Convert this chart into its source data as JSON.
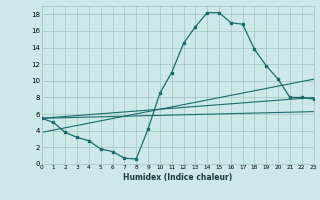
{
  "xlabel": "Humidex (Indice chaleur)",
  "bg_color": "#cce8e8",
  "grid_color": "#aacaca",
  "line_color": "#1a6b6b",
  "xlim": [
    0,
    23
  ],
  "ylim": [
    0,
    19
  ],
  "xticks": [
    0,
    1,
    2,
    3,
    4,
    5,
    6,
    7,
    8,
    9,
    10,
    11,
    12,
    13,
    14,
    15,
    16,
    17,
    18,
    19,
    20,
    21,
    22,
    23
  ],
  "yticks": [
    0,
    2,
    4,
    6,
    8,
    10,
    12,
    14,
    16,
    18
  ],
  "line1_x": [
    0,
    1,
    2,
    3,
    4,
    5,
    6,
    7,
    8,
    9,
    10,
    11,
    12,
    13,
    14,
    15,
    16,
    17,
    18,
    19,
    20,
    21,
    22,
    23
  ],
  "line1_y": [
    5.5,
    5.0,
    3.8,
    3.2,
    2.8,
    1.8,
    1.5,
    0.7,
    0.6,
    4.2,
    8.5,
    11.0,
    14.5,
    16.5,
    18.2,
    18.2,
    17.0,
    16.8,
    13.8,
    11.8,
    10.2,
    8.0,
    8.0,
    7.8
  ],
  "line2_x": [
    0,
    23
  ],
  "line2_y": [
    5.5,
    6.3
  ],
  "line3_x": [
    0,
    23
  ],
  "line3_y": [
    5.5,
    8.0
  ],
  "line4_x": [
    0,
    23
  ],
  "line4_y": [
    3.8,
    10.2
  ]
}
